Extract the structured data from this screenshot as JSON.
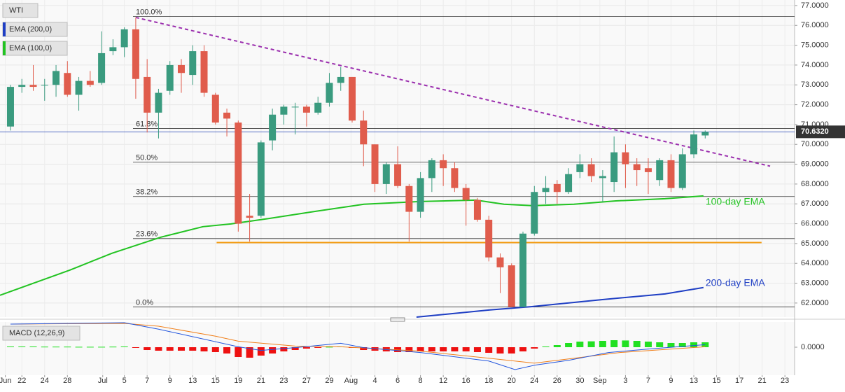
{
  "chart_data": {
    "type": "candlestick",
    "instrument": "WTI",
    "up_color": "#3a9b7f",
    "down_color": "#e05c4c",
    "candles": {
      "open": [
        70.9,
        72.9,
        73.0,
        73.0,
        73.0,
        73.6,
        72.5,
        73.2,
        73.1,
        74.7,
        74.9,
        75.8,
        73.4,
        71.6,
        72.7,
        74.0,
        73.5,
        74.7,
        72.5,
        71.6,
        71.1,
        66.4,
        66.4,
        70.2,
        71.5,
        71.9,
        71.9,
        71.6,
        72.1,
        73.1,
        73.4,
        71.2,
        70.0,
        68.0,
        69.0,
        67.9,
        66.6,
        68.3,
        69.2,
        68.8,
        67.8,
        67.2,
        66.2,
        64.3,
        63.9,
        61.8,
        65.5,
        67.6,
        68.0,
        67.6,
        68.6,
        69.0,
        68.3,
        68.1,
        69.6,
        69.0,
        68.8,
        68.2,
        69.2,
        67.8,
        69.5,
        70.45
      ],
      "high": [
        73.0,
        73.3,
        74.0,
        73.3,
        74.0,
        74.2,
        73.4,
        73.7,
        75.7,
        75.3,
        75.9,
        76.4,
        74.3,
        72.8,
        74.2,
        74.3,
        75.0,
        75.0,
        72.6,
        71.8,
        71.2,
        67.5,
        70.2,
        71.8,
        72.0,
        72.1,
        72.0,
        72.4,
        73.6,
        73.9,
        73.4,
        71.7,
        70.0,
        69.1,
        69.9,
        68.0,
        68.6,
        69.3,
        69.5,
        69.1,
        68.0,
        67.3,
        66.4,
        64.5,
        64.0,
        65.6,
        67.9,
        68.4,
        68.2,
        68.8,
        69.5,
        69.3,
        68.7,
        70.4,
        70.0,
        69.3,
        69.3,
        69.3,
        69.5,
        69.8,
        70.7,
        70.7
      ],
      "low": [
        70.7,
        72.6,
        72.7,
        72.2,
        72.4,
        72.4,
        71.7,
        72.9,
        73.0,
        74.5,
        74.4,
        72.3,
        70.6,
        70.3,
        72.5,
        72.6,
        73.0,
        72.4,
        71.0,
        70.4,
        65.6,
        65.1,
        66.3,
        69.7,
        71.0,
        70.5,
        70.9,
        71.5,
        71.9,
        72.7,
        71.1,
        68.9,
        67.6,
        67.5,
        67.8,
        65.1,
        66.3,
        67.6,
        67.9,
        67.6,
        65.9,
        66.1,
        64.1,
        62.5,
        61.8,
        61.8,
        65.4,
        67.0,
        67.0,
        67.5,
        68.3,
        68.1,
        67.1,
        67.6,
        67.8,
        67.9,
        67.5,
        67.9,
        67.6,
        67.7,
        69.3,
        70.3
      ],
      "close": [
        72.9,
        73.0,
        72.9,
        73.0,
        73.7,
        72.5,
        73.2,
        73.0,
        74.6,
        74.9,
        75.8,
        73.3,
        71.6,
        72.6,
        74.0,
        73.6,
        74.7,
        72.6,
        71.1,
        71.3,
        66.0,
        66.3,
        70.1,
        71.5,
        71.9,
        71.9,
        71.6,
        72.1,
        73.1,
        73.4,
        71.2,
        70.0,
        68.0,
        69.0,
        67.9,
        66.6,
        68.3,
        69.2,
        68.8,
        67.8,
        67.2,
        66.2,
        64.3,
        63.8,
        61.8,
        65.5,
        67.6,
        67.8,
        67.6,
        68.5,
        69.0,
        68.4,
        68.4,
        69.6,
        69.0,
        68.7,
        68.6,
        69.2,
        67.8,
        69.5,
        70.5,
        70.63
      ]
    },
    "xlim": [
      -0.92,
      68.85
    ],
    "xticks": [
      {
        "value": -0.45,
        "label": "Jun"
      },
      {
        "value": 1,
        "label": "22"
      },
      {
        "value": 3,
        "label": "24"
      },
      {
        "value": 5,
        "label": "28"
      },
      {
        "value": 8.1,
        "label": "Jul"
      },
      {
        "value": 10,
        "label": "5"
      },
      {
        "value": 12,
        "label": "7"
      },
      {
        "value": 14,
        "label": "9"
      },
      {
        "value": 16,
        "label": "13"
      },
      {
        "value": 18,
        "label": "15"
      },
      {
        "value": 20,
        "label": "19"
      },
      {
        "value": 22,
        "label": "21"
      },
      {
        "value": 24,
        "label": "23"
      },
      {
        "value": 26,
        "label": "27"
      },
      {
        "value": 28,
        "label": "29"
      },
      {
        "value": 29.9,
        "label": "Aug"
      },
      {
        "value": 32,
        "label": "4"
      },
      {
        "value": 34,
        "label": "6"
      },
      {
        "value": 36,
        "label": "8"
      },
      {
        "value": 38,
        "label": "12"
      },
      {
        "value": 40,
        "label": "16"
      },
      {
        "value": 42,
        "label": "18"
      },
      {
        "value": 44,
        "label": "20"
      },
      {
        "value": 46,
        "label": "24"
      },
      {
        "value": 48,
        "label": "26"
      },
      {
        "value": 50,
        "label": "30"
      },
      {
        "value": 51.75,
        "label": "Sep"
      },
      {
        "value": 54,
        "label": "3"
      },
      {
        "value": 56,
        "label": "7"
      },
      {
        "value": 58,
        "label": "9"
      },
      {
        "value": 60,
        "label": "13"
      },
      {
        "value": 62,
        "label": "15"
      },
      {
        "value": 64,
        "label": "17"
      },
      {
        "value": 66,
        "label": "21"
      },
      {
        "value": 68,
        "label": "23"
      }
    ],
    "ylim": [
      61.29,
      77.28
    ],
    "yticks": [
      {
        "value": 62,
        "label": "62.0000"
      },
      {
        "value": 63,
        "label": "63.0000"
      },
      {
        "value": 64,
        "label": "64.0000"
      },
      {
        "value": 65,
        "label": "65.0000"
      },
      {
        "value": 66,
        "label": "66.0000"
      },
      {
        "value": 67,
        "label": "67.0000"
      },
      {
        "value": 68,
        "label": "68.0000"
      },
      {
        "value": 69,
        "label": "69.0000"
      },
      {
        "value": 70,
        "label": "70.0000"
      },
      {
        "value": 71,
        "label": "71.0000"
      },
      {
        "value": 72,
        "label": "72.0000"
      },
      {
        "value": 73,
        "label": "73.0000"
      },
      {
        "value": 74,
        "label": "74.0000"
      },
      {
        "value": 75,
        "label": "75.0000"
      },
      {
        "value": 76,
        "label": "76.0000"
      },
      {
        "value": 77,
        "label": "77.0000"
      }
    ],
    "grid": true,
    "last_price": {
      "value": 70.632,
      "label": "70.6320",
      "color": "#1f3fb4"
    },
    "fibonacci": [
      {
        "label": "100.0%",
        "value": 76.45
      },
      {
        "label": "61.8%",
        "value": 70.8
      },
      {
        "label": "50.0%",
        "value": 69.1
      },
      {
        "label": "38.2%",
        "value": 67.37
      },
      {
        "label": "23.6%",
        "value": 65.25
      },
      {
        "label": "0.0%",
        "value": 61.8
      }
    ],
    "support": {
      "value": 65.05,
      "x": [
        18.1,
        65.95
      ],
      "color": "#f39c12"
    },
    "trendline": {
      "x": [
        11,
        66.7
      ],
      "y": [
        76.4,
        68.9
      ],
      "color": "#9b2fae"
    },
    "series": [
      {
        "name": "EMA (100,0)",
        "label": "100-day EMA",
        "color": "#22c322",
        "x": [
          -0.92,
          5.22,
          8.91,
          13.21,
          16.9,
          19.36,
          22.43,
          26.74,
          31.04,
          35.96,
          40.87,
          43.33,
          45.79,
          49.48,
          53.16,
          57.47,
          60.85
        ],
        "values": [
          62.39,
          63.66,
          64.51,
          65.32,
          65.85,
          65.99,
          66.24,
          66.62,
          66.98,
          67.12,
          67.19,
          66.98,
          66.91,
          66.98,
          67.15,
          67.26,
          67.4
        ]
      },
      {
        "name": "EMA (200,0)",
        "label": "200-day EMA",
        "color": "#1f3fc4",
        "x": [
          35.65,
          42.1,
          45.8,
          51.9,
          57.47,
          60.85
        ],
        "values": [
          61.29,
          61.65,
          61.82,
          62.17,
          62.46,
          62.78
        ]
      }
    ],
    "macd": {
      "title": "MACD (12,26,9)",
      "ylim": [
        -2.0,
        1.8
      ],
      "yticks": [
        {
          "value": 0,
          "label": "0.0000"
        }
      ],
      "histogram": {
        "pos_color": "#22e022",
        "neg_color": "#ee1111",
        "values": [
          0.05,
          0.05,
          0.05,
          0.04,
          0.04,
          0.04,
          0.03,
          0.03,
          0.03,
          0.04,
          0.05,
          -0.05,
          -0.2,
          -0.25,
          -0.25,
          -0.25,
          -0.25,
          -0.3,
          -0.35,
          -0.45,
          -0.7,
          -0.75,
          -0.6,
          -0.45,
          -0.3,
          -0.2,
          -0.1,
          -0.05,
          0.03,
          0.05,
          -0.05,
          -0.2,
          -0.25,
          -0.3,
          -0.35,
          -0.35,
          -0.3,
          -0.3,
          -0.3,
          -0.3,
          -0.3,
          -0.35,
          -0.4,
          -0.45,
          -0.45,
          -0.3,
          -0.1,
          0.05,
          0.15,
          0.3,
          0.4,
          0.42,
          0.45,
          0.5,
          0.48,
          0.45,
          0.4,
          0.35,
          0.3,
          0.3,
          0.35,
          0.35
        ]
      },
      "macd_line": {
        "color": "#2255dd",
        "x": [
          0,
          10,
          13,
          20,
          22,
          25,
          29,
          31,
          36,
          42,
          44.3,
          46,
          49,
          52.5,
          56,
          61
        ],
        "values": [
          1.65,
          1.75,
          1.29,
          0.03,
          -0.23,
          -0.03,
          0.28,
          -0.03,
          -0.38,
          -0.99,
          -1.6,
          -1.29,
          -0.94,
          -0.38,
          -0.13,
          0.18
        ]
      },
      "signal_line": {
        "color": "#f07f1a",
        "x": [
          0,
          10,
          13,
          18,
          20,
          25,
          29,
          36,
          42,
          46,
          49,
          53.5,
          61
        ],
        "values": [
          1.65,
          1.7,
          1.5,
          0.79,
          0.43,
          0.08,
          0.03,
          -0.28,
          -0.79,
          -1.14,
          -0.84,
          -0.38,
          0.03
        ]
      }
    }
  }
}
